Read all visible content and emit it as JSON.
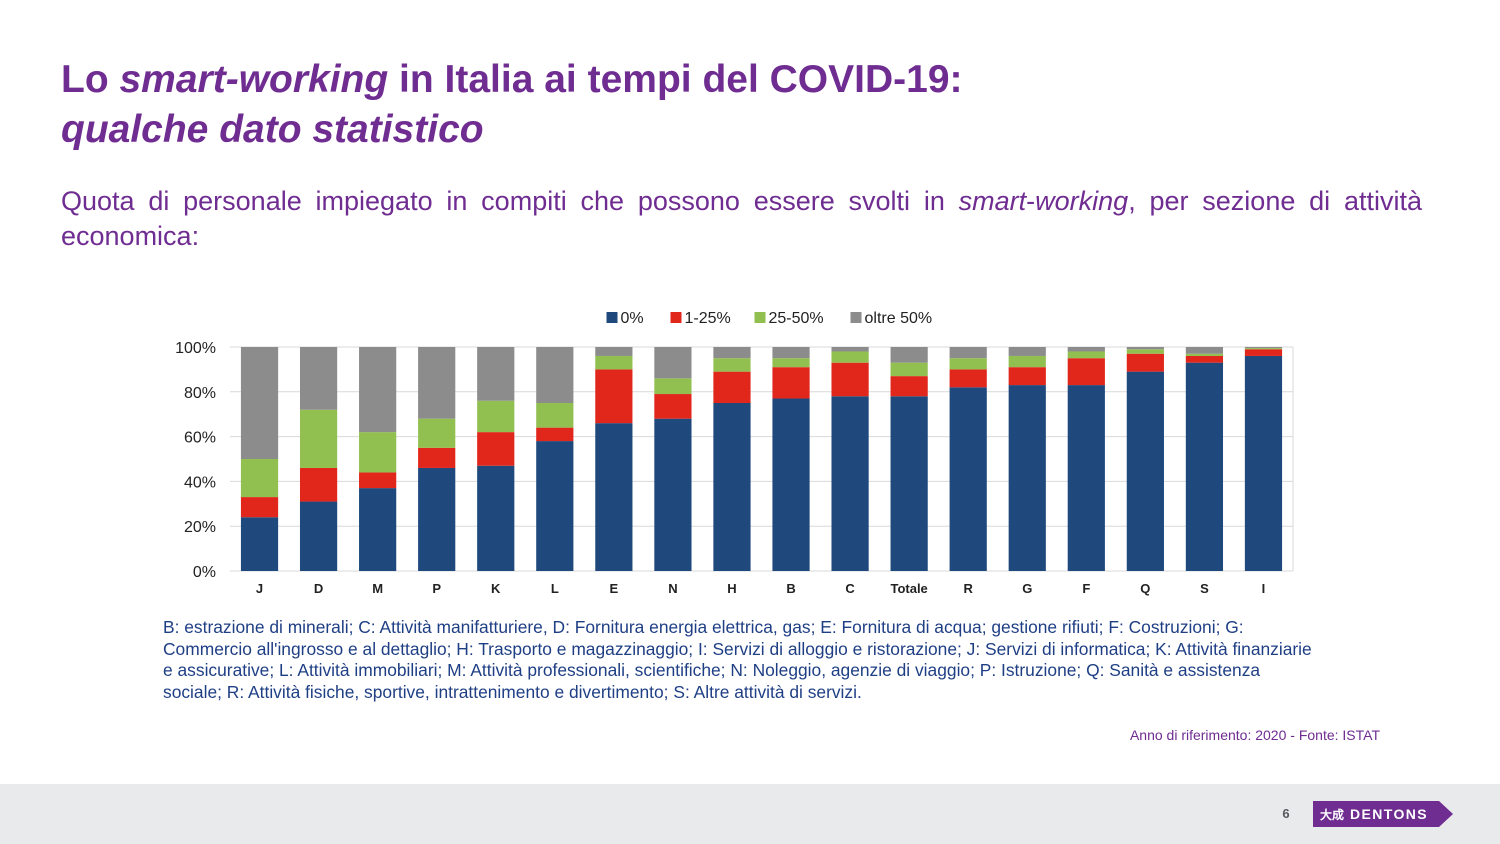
{
  "title": {
    "line1_prefix": "Lo ",
    "line1_italic": "smart-working",
    "line1_suffix": " in Italia ai tempi del COVID-19:",
    "line2_italic": "qualche dato statistico"
  },
  "subtitle": {
    "prefix": "Quota di personale impiegato in compiti che possono essere svolti in ",
    "italic": "smart",
    "mid": "-",
    "italic2": "working",
    "suffix": ", per sezione di attività economica:"
  },
  "footnote": "B: estrazione di minerali; C: Attività manifatturiere, D: Fornitura energia elettrica, gas; E: Fornitura di acqua; gestione rifiuti; F: Costruzioni; G: Commercio all'ingrosso e al dettaglio; H: Trasporto e magazzinaggio; I: Servizi di alloggio e ristorazione; J: Servizi di informatica; K: Attività finanziarie e assicurative; L: Attività immobiliari; M: Attività professionali, scientifiche; N: Noleggio, agenzie di viaggio; P: Istruzione; Q: Sanità e assistenza sociale; R: Attività fisiche, sportive, intrattenimento e divertimento; S: Altre attività di servizi.",
  "source": "Anno di riferimento: 2020 - Fonte: ISTAT",
  "footer": {
    "page_number": "6",
    "logo_mark": "大成",
    "logo_text": "DENTONS"
  },
  "colors": {
    "brand_purple": "#6f2c91",
    "footnote_blue": "#1f3f85",
    "footer_bg": "#e9eaec"
  },
  "chart_data": {
    "type": "bar",
    "stacked": true,
    "categories": [
      "J",
      "D",
      "M",
      "P",
      "K",
      "L",
      "E",
      "N",
      "H",
      "B",
      "C",
      "Totale",
      "R",
      "G",
      "F",
      "Q",
      "S",
      "I"
    ],
    "y_tick_labels": [
      "0%",
      "20%",
      "40%",
      "60%",
      "80%",
      "100%"
    ],
    "ylim": [
      0,
      100
    ],
    "grid": true,
    "legend_position": "top-center",
    "series": [
      {
        "name": "0%",
        "color": "#1f497d",
        "values": [
          24,
          31,
          37,
          46,
          47,
          58,
          66,
          68,
          75,
          77,
          78,
          78,
          82,
          83,
          83,
          89,
          93,
          96
        ]
      },
      {
        "name": "1-25%",
        "color": "#e1261c",
        "values": [
          9,
          15,
          7,
          9,
          15,
          6,
          24,
          11,
          14,
          14,
          15,
          9,
          8,
          8,
          12,
          8,
          3,
          3
        ]
      },
      {
        "name": "25-50%",
        "color": "#92c050",
        "values": [
          17,
          26,
          18,
          13,
          14,
          11,
          6,
          7,
          6,
          4,
          5,
          6,
          5,
          5,
          3,
          2,
          1,
          0.5
        ]
      },
      {
        "name": "oltre 50%",
        "color": "#8c8c8c",
        "values": [
          50,
          28,
          38,
          32,
          24,
          25,
          4,
          14,
          5,
          5,
          2,
          7,
          5,
          4,
          2,
          1,
          3,
          0.5
        ]
      }
    ]
  }
}
